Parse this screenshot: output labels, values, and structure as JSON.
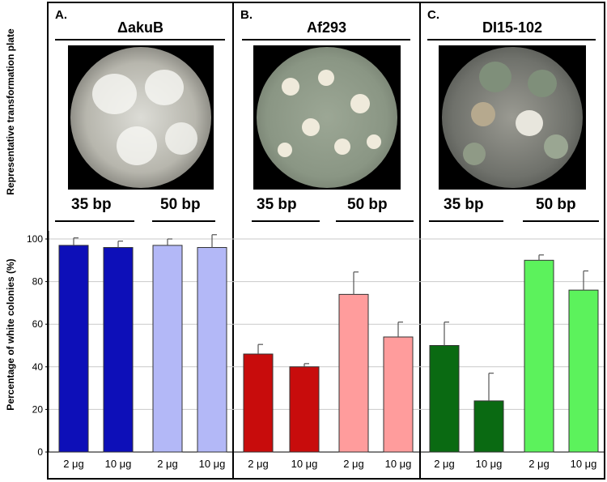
{
  "figure": {
    "top_axis_label": "Representative transformation plate",
    "bottom_axis_label": "Percentage of white colonies (%)",
    "bp_labels": [
      "35 bp",
      "50 bp"
    ]
  },
  "panels": [
    {
      "letter": "A.",
      "strain": "ΔakuB",
      "plate_image": "plate-photo-akuB"
    },
    {
      "letter": "B.",
      "strain": "Af293",
      "plate_image": "plate-photo-Af293"
    },
    {
      "letter": "C.",
      "strain": "DI15-102",
      "plate_image": "plate-photo-DI15-102"
    }
  ],
  "colors": {
    "akuB_35": "#0d0fb8",
    "akuB_50": "#b3b8f7",
    "Af293_35": "#c80c0c",
    "Af293_50": "#ff9c9c",
    "DI15_35": "#0a6a12",
    "DI15_50": "#5cf25c"
  },
  "chart_data": {
    "type": "bar",
    "title": "",
    "xlabel": "",
    "ylabel": "Percentage of white colonies (%)",
    "ylim": [
      0,
      100
    ],
    "yticks": [
      0,
      20,
      40,
      60,
      80,
      100
    ],
    "grid": true,
    "categories": [
      "2 μg",
      "10 μg",
      "2 μg",
      "10 μg"
    ],
    "groups": [
      {
        "strain": "ΔakuB",
        "values": [
          97,
          96,
          97,
          96
        ],
        "errors": [
          3.5,
          3,
          3,
          6
        ],
        "colors": [
          "#0d0fb8",
          "#0d0fb8",
          "#b3b8f7",
          "#b3b8f7"
        ]
      },
      {
        "strain": "Af293",
        "values": [
          46,
          40,
          74,
          54
        ],
        "errors": [
          4.5,
          1.5,
          10.5,
          7
        ],
        "colors": [
          "#c80c0c",
          "#c80c0c",
          "#ff9c9c",
          "#ff9c9c"
        ]
      },
      {
        "strain": "DI15-102",
        "values": [
          50,
          24,
          90,
          76
        ],
        "errors": [
          11,
          13,
          2.5,
          9
        ],
        "colors": [
          "#0a6a12",
          "#0a6a12",
          "#5cf25c",
          "#5cf25c"
        ]
      }
    ]
  }
}
